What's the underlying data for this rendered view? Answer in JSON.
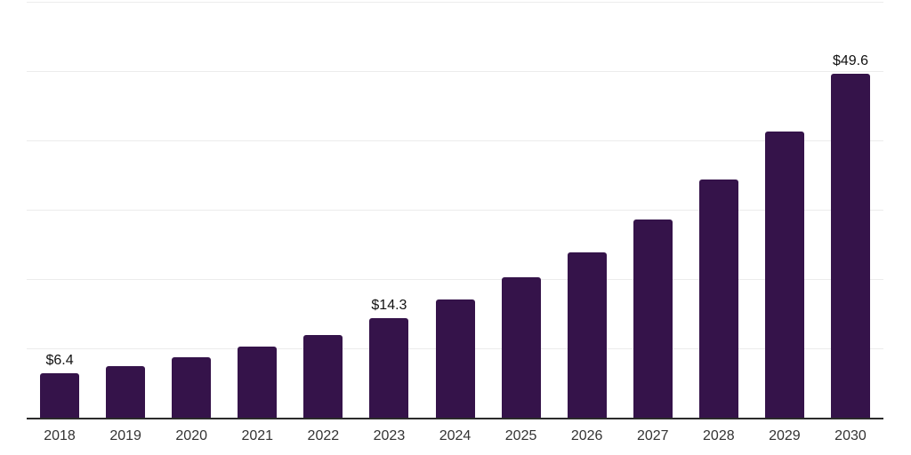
{
  "chart_data": {
    "type": "bar",
    "title": "",
    "xlabel": "",
    "ylabel": "",
    "categories": [
      "2018",
      "2019",
      "2020",
      "2021",
      "2022",
      "2023",
      "2024",
      "2025",
      "2026",
      "2027",
      "2028",
      "2029",
      "2030"
    ],
    "values": [
      6.4,
      7.5,
      8.7,
      10.2,
      11.9,
      14.3,
      17.0,
      20.2,
      23.9,
      28.6,
      34.4,
      41.3,
      49.6
    ],
    "data_labels": [
      "$6.4",
      "",
      "",
      "",
      "",
      "$14.3",
      "",
      "",
      "",
      "",
      "",
      "",
      "$49.6"
    ],
    "ylim": [
      0,
      60
    ],
    "grid_interval": 10,
    "grid_visible": true,
    "legend": "none",
    "colors": {
      "bar": "#35134A",
      "gridline": "#ececec",
      "axis_line": "#2b2b2b",
      "value_label": "#111111",
      "tick_label": "#333333",
      "background": "#ffffff"
    }
  }
}
